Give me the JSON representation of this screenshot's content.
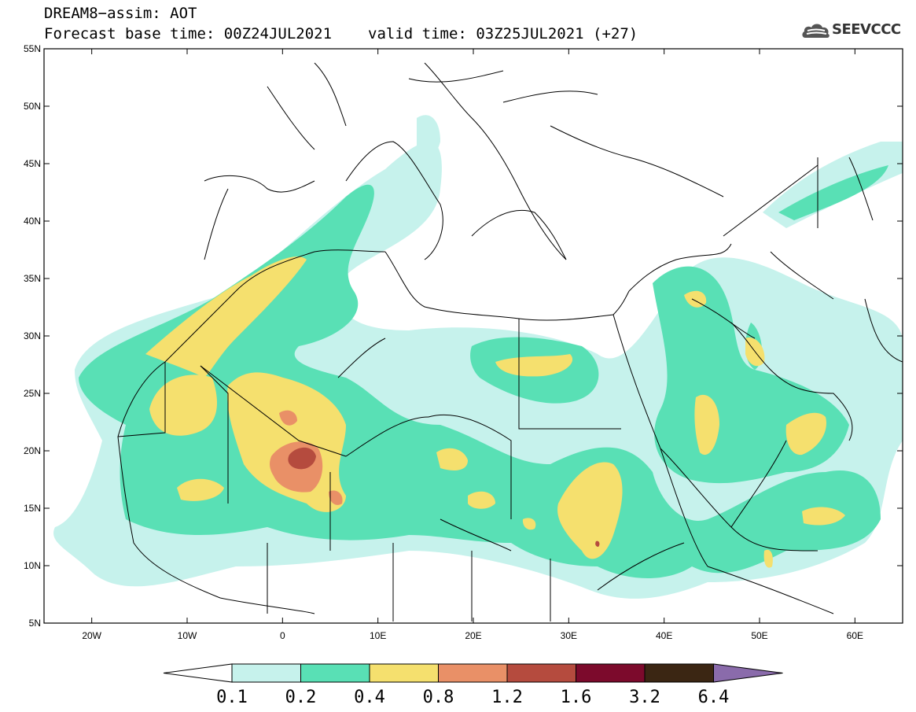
{
  "header": {
    "title_line1": "DREAM8−assim: AOT",
    "base_time": "Forecast base time: 00Z24JUL2021",
    "valid_time": "valid time: 03Z25JUL2021 (+27)",
    "logo_text": "SEEVCCC"
  },
  "map": {
    "lon_range": [
      -25,
      65
    ],
    "lat_range": [
      5,
      55
    ],
    "lat_ticks": [
      "55N",
      "50N",
      "45N",
      "40N",
      "35N",
      "30N",
      "25N",
      "20N",
      "15N",
      "10N",
      "5N"
    ],
    "lon_ticks": [
      "20W",
      "10W",
      "0",
      "10E",
      "20E",
      "30E",
      "40E",
      "50E",
      "60E"
    ]
  },
  "legend": {
    "colors": [
      "#c6f2ec",
      "#59e0b5",
      "#f5e06e",
      "#e99067",
      "#b54b3e",
      "#7c0a2c",
      "#3b2613",
      "#8a6bab"
    ],
    "labels": [
      "0.1",
      "0.2",
      "0.4",
      "0.8",
      "1.2",
      "1.6",
      "3.2",
      "6.4"
    ]
  }
}
